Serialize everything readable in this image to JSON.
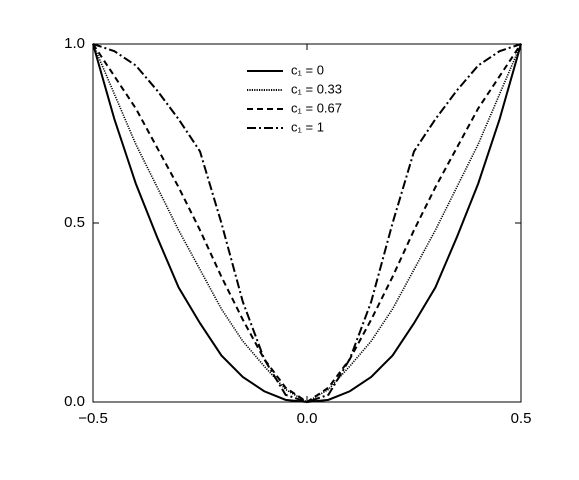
{
  "chart_data": {
    "type": "line",
    "x": [
      -0.5,
      -0.45,
      -0.4,
      -0.35,
      -0.3,
      -0.25,
      -0.2,
      -0.15,
      -0.1,
      -0.05,
      0,
      0.05,
      0.1,
      0.15,
      0.2,
      0.25,
      0.3,
      0.35,
      0.4,
      0.45,
      0.5
    ],
    "series": [
      {
        "name": "c₁ = 0",
        "color": "#000000",
        "linestyle": "solid",
        "values": [
          1,
          0.79,
          0.61,
          0.46,
          0.32,
          0.22,
          0.13,
          0.07,
          0.03,
          0.006,
          0,
          0.006,
          0.03,
          0.07,
          0.13,
          0.22,
          0.32,
          0.46,
          0.61,
          0.79,
          1
        ]
      },
      {
        "name": "c₁ = 0.33",
        "color": "#000000",
        "linestyle": "dotted",
        "values": [
          1,
          0.86,
          0.72,
          0.6,
          0.48,
          0.37,
          0.26,
          0.17,
          0.1,
          0.035,
          0,
          0.035,
          0.1,
          0.17,
          0.26,
          0.37,
          0.48,
          0.6,
          0.72,
          0.86,
          1
        ]
      },
      {
        "name": "c₁ = 0.67",
        "color": "#000000",
        "linestyle": "dashed",
        "values": [
          1,
          0.91,
          0.82,
          0.71,
          0.6,
          0.48,
          0.35,
          0.23,
          0.12,
          0.04,
          0,
          0.04,
          0.12,
          0.23,
          0.35,
          0.48,
          0.6,
          0.71,
          0.82,
          0.91,
          1
        ]
      },
      {
        "name": "c₁ = 1",
        "color": "#000000",
        "linestyle": "dashdot",
        "values": [
          1,
          0.98,
          0.94,
          0.87,
          0.79,
          0.7,
          0.5,
          0.28,
          0.12,
          0.02,
          0,
          0.02,
          0.12,
          0.28,
          0.5,
          0.7,
          0.79,
          0.87,
          0.94,
          0.98,
          1
        ]
      }
    ],
    "xlim": [
      -0.5,
      0.5
    ],
    "xticks": [
      {
        "value": -0.5,
        "label": "−0.5"
      },
      {
        "value": 0,
        "label": "0.0"
      },
      {
        "value": 0.5,
        "label": "0.5"
      }
    ],
    "ylim": [
      0,
      1
    ],
    "yticks": [
      {
        "value": 0,
        "label": "0.0"
      },
      0.5,
      {
        "value": 1,
        "label": "1.0"
      }
    ],
    "legend": "upper center"
  }
}
